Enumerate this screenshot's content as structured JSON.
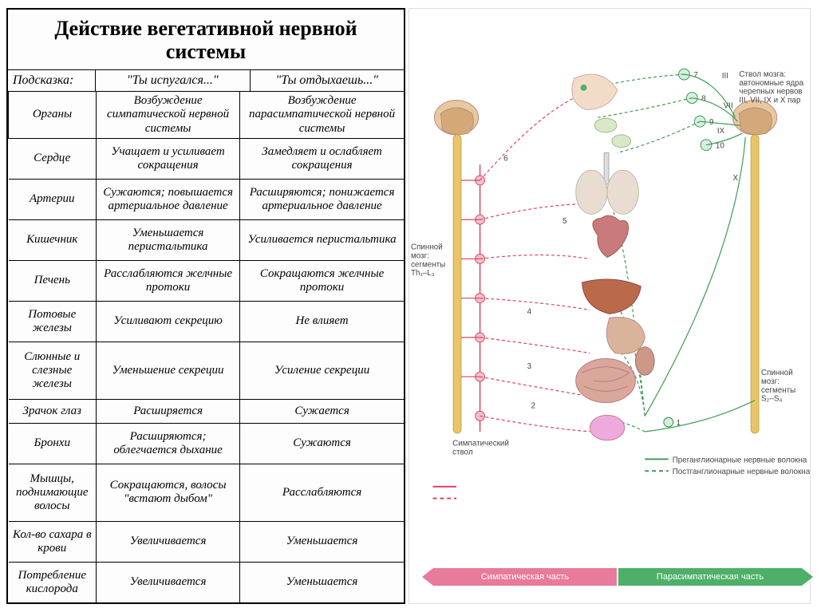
{
  "table": {
    "title": "Действие вегетативной нервной системы",
    "hintLabel": "Подсказка:",
    "hint1": "\"Ты испугался...\"",
    "hint2": "\"Ты отдыхаешь...\"",
    "headers": [
      "Органы",
      "Возбуждение симпатической нервной системы",
      "Возбуждение парасимпатической нервной системы"
    ],
    "rows": [
      [
        "Сердце",
        "Учащает и усиливает сокращения",
        "Замедляет и ослабляет сокращения"
      ],
      [
        "Артерии",
        "Сужаются; повышается артериальное давление",
        "Расширяются; понижается артериальное давление"
      ],
      [
        "Кишечник",
        "Уменьшается перистальтика",
        "Усиливается перистальтика"
      ],
      [
        "Печень",
        "Расслабляются желчные протоки",
        "Сокращаются желчные протоки"
      ],
      [
        "Потовые железы",
        "Усиливают секрецию",
        "Не влияет"
      ],
      [
        "Слюнные и слезные железы",
        "Уменьшение секреции",
        "Усиление секреции"
      ],
      [
        "Зрачок глаз",
        "Расширяется",
        "Сужается"
      ],
      [
        "Бронхи",
        "Расширяются; облегчается дыхание",
        "Сужаются"
      ],
      [
        "Мышцы, поднимающие волосы",
        "Сокращаются, волосы \"встают дыбом\"",
        "Расслабляются"
      ],
      [
        "Кол-во сахара в крови",
        "Увеличивается",
        "Уменьшается"
      ],
      [
        "Потребление кислорода",
        "Увеличивается",
        "Уменьшается"
      ]
    ]
  },
  "diagram": {
    "leftSpine": "Спинной мозг: сегменты Th₁–L₃",
    "sympTrunk": "Симпатический ствол",
    "brainstem": "Ствол мозга: автономные ядра черепных нервов III, VII, IX и X пар",
    "rightSpine": "Спинной мозг: сегменты S₂–S₄",
    "legendPre": "Преганглионарные нервные волокна",
    "legendPost": "Постганглионарные нервные волокна",
    "sympBar": "Симпатическая часть",
    "paraBar": "Парасимпатическая часть",
    "nerveLabels": [
      "III",
      "VII",
      "IX",
      "X"
    ],
    "numbers": [
      "1",
      "2",
      "3",
      "4",
      "5",
      "6",
      "7",
      "8",
      "9",
      "10"
    ],
    "colors": {
      "symp_solid": "#d9445e",
      "symp_dash": "#e87a9a",
      "para_solid": "#3a9a52",
      "para_dash": "#6ec989",
      "brain": "#d4a878",
      "spine": "#e8c56a",
      "organ_heart": "#c97a7a",
      "organ_lung": "#cfc2b6",
      "organ_liver": "#b96a4a",
      "organ_gut": "#d9a89a"
    }
  }
}
